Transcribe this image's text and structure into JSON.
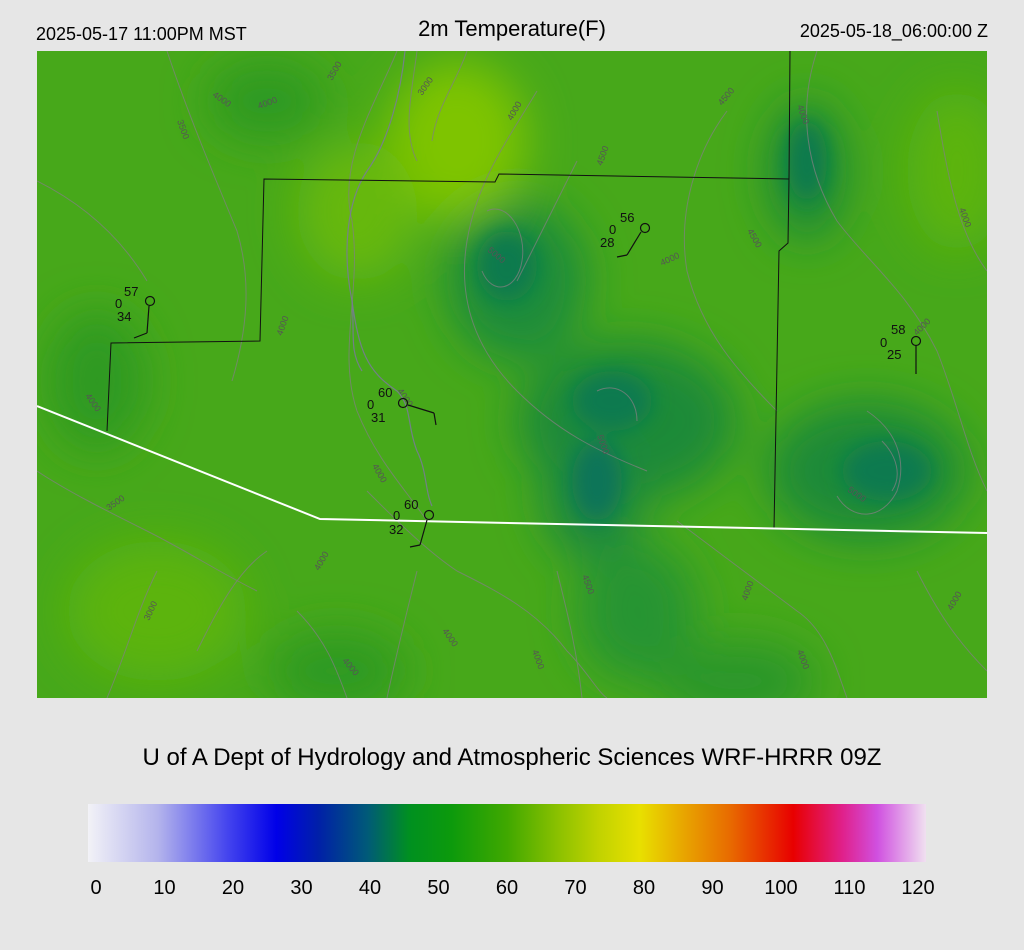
{
  "header": {
    "valid_local": "2025-05-17 11:00PM MST",
    "title": "2m Temperature(F)",
    "valid_utc": "2025-05-18_06:00:00 Z"
  },
  "credit": "U of A Dept of Hydrology and Atmospheric Sciences WRF-HRRR 09Z",
  "colorbar": {
    "min": 0,
    "max": 120,
    "tick_labels": [
      "0",
      "10",
      "20",
      "30",
      "40",
      "50",
      "60",
      "70",
      "80",
      "90",
      "100",
      "110",
      "120"
    ],
    "stops": [
      {
        "value": 0,
        "color": "#f2f2f7"
      },
      {
        "value": 10,
        "color": "#b4b4ec"
      },
      {
        "value": 20,
        "color": "#4444ee"
      },
      {
        "value": 27,
        "color": "#0000e8"
      },
      {
        "value": 33,
        "color": "#0020a8"
      },
      {
        "value": 40,
        "color": "#005a78"
      },
      {
        "value": 46,
        "color": "#009020"
      },
      {
        "value": 52,
        "color": "#0c9a0c"
      },
      {
        "value": 60,
        "color": "#40a800"
      },
      {
        "value": 67,
        "color": "#88c000"
      },
      {
        "value": 73,
        "color": "#c0d200"
      },
      {
        "value": 79,
        "color": "#e8e000"
      },
      {
        "value": 85,
        "color": "#e8a800"
      },
      {
        "value": 92,
        "color": "#e86a00"
      },
      {
        "value": 101,
        "color": "#e80000"
      },
      {
        "value": 108,
        "color": "#e0208a"
      },
      {
        "value": 113,
        "color": "#d050e0"
      },
      {
        "value": 120,
        "color": "#f0e0f0"
      }
    ]
  },
  "stations": [
    {
      "temp": "57",
      "cloud": "0",
      "dew": "34"
    },
    {
      "temp": "56",
      "cloud": "0",
      "dew": "28"
    },
    {
      "temp": "58",
      "cloud": "0",
      "dew": "25"
    },
    {
      "temp": "60",
      "cloud": "0",
      "dew": "31"
    },
    {
      "temp": "60",
      "cloud": "0",
      "dew": "32"
    }
  ],
  "contour_labels": [
    "3500",
    "3000",
    "4000",
    "4500",
    "5000"
  ],
  "colors": {
    "background": "#e6e6e6",
    "map_base": "#47a81a",
    "contour": "#808080",
    "state_line": "#ffffff",
    "county_line": "#111111"
  }
}
